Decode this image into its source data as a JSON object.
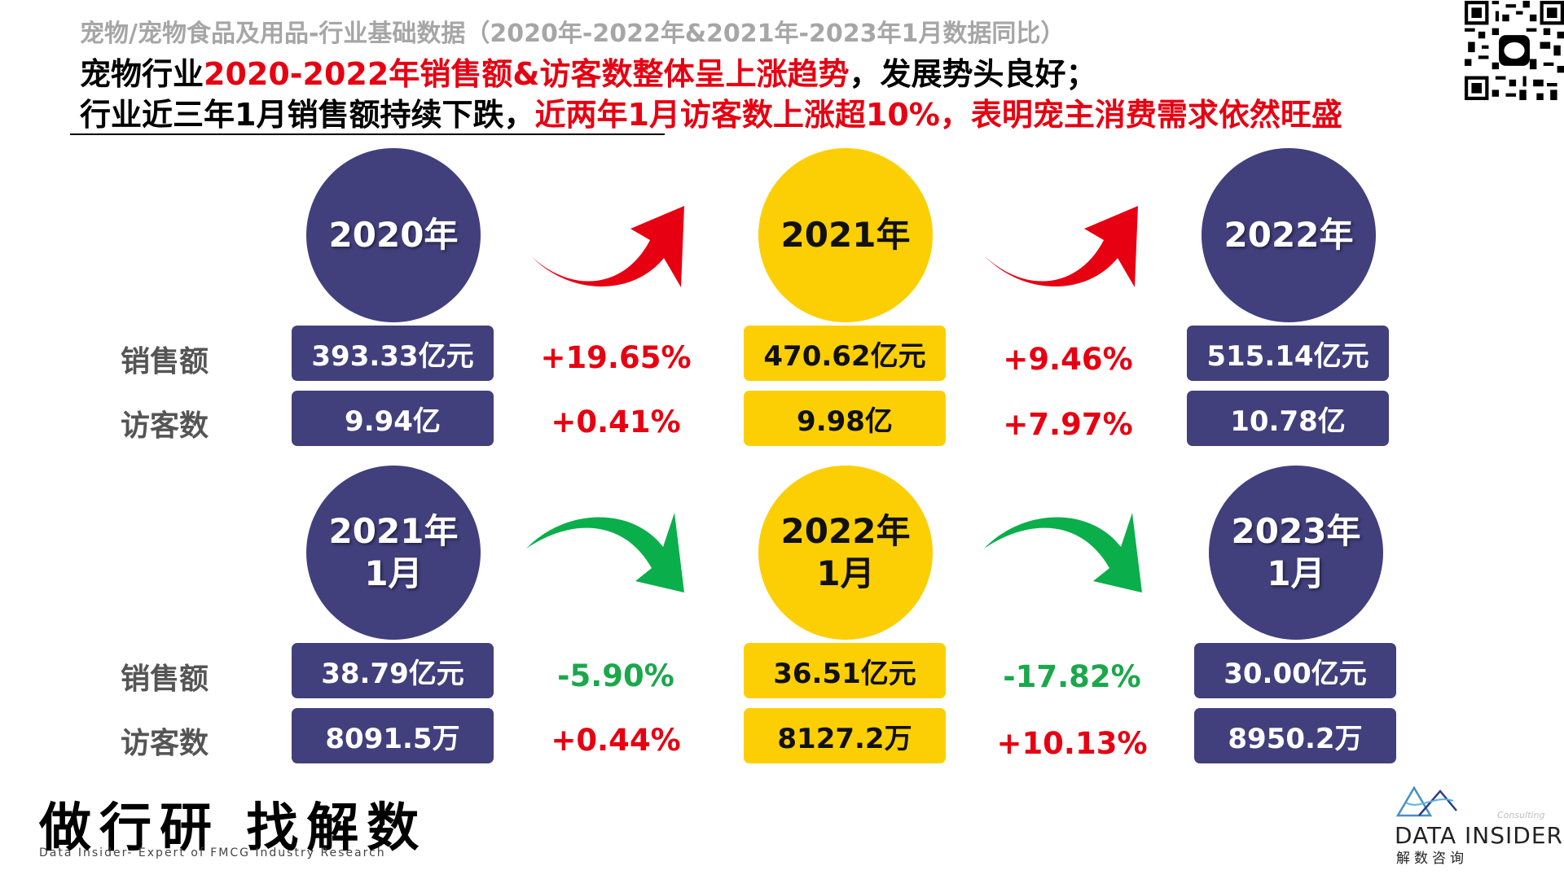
{
  "subtitle": "宠物/宠物食品及用品-行业基础数据（2020年-2022年&2021年-2023年1月数据同比）",
  "headline": {
    "line1_black_a": "宠物行业",
    "line1_red": "2020-2022年销售额&访客数整体呈上涨趋势",
    "line1_black_b": "，发展势头良好；",
    "line2_black": "行业近三年1月销售额持续下跌，",
    "line2_red": "近两年1月访客数上涨超10%，表明宠主消费需求依然旺盛"
  },
  "labels": {
    "sales": "销售额",
    "visitors": "访客数"
  },
  "annual": {
    "periods": [
      {
        "name": "2020年",
        "sales": "393.33亿元",
        "visitors": "9.94亿",
        "color": "#413f7c"
      },
      {
        "name": "2021年",
        "sales": "470.62亿元",
        "visitors": "9.98亿",
        "color": "#fccf04"
      },
      {
        "name": "2022年",
        "sales": "515.14亿元",
        "visitors": "10.78亿",
        "color": "#413f7c"
      }
    ],
    "changes": [
      {
        "sales": "+19.65%",
        "visitors": "+0.41%",
        "arrow": "up-red"
      },
      {
        "sales": "+9.46%",
        "visitors": "+7.97%",
        "arrow": "up-red"
      }
    ]
  },
  "january": {
    "periods": [
      {
        "name": "2021年\n1月",
        "sales": "38.79亿元",
        "visitors": "8091.5万",
        "color": "#413f7c"
      },
      {
        "name": "2022年\n1月",
        "sales": "36.51亿元",
        "visitors": "8127.2万",
        "color": "#fccf04"
      },
      {
        "name": "2023年\n1月",
        "sales": "30.00亿元",
        "visitors": "8950.2万",
        "color": "#413f7c"
      }
    ],
    "changes": [
      {
        "sales": "-5.90%",
        "visitors": "+0.44%",
        "arrow": "down-green"
      },
      {
        "sales": "-17.82%",
        "visitors": "+10.13%",
        "arrow": "down-green"
      }
    ]
  },
  "footer": {
    "slogan": "做行研 找解数",
    "slogan_sub": "Data Insider- Expert of FMCG Industry Research",
    "brand_name": "DATA INSIDER",
    "brand_cn": "解数咨询",
    "brand_tag": "Consulting"
  },
  "colors": {
    "accent_red": "#e60012",
    "accent_green": "#1aa84b",
    "purple": "#413f7c",
    "yellow": "#fccf04"
  },
  "icons": {
    "qr": "qr-code-icon",
    "arrow_up": "curved-arrow-up-icon",
    "arrow_down": "curved-arrow-down-icon",
    "logo": "data-insider-logo-icon"
  }
}
